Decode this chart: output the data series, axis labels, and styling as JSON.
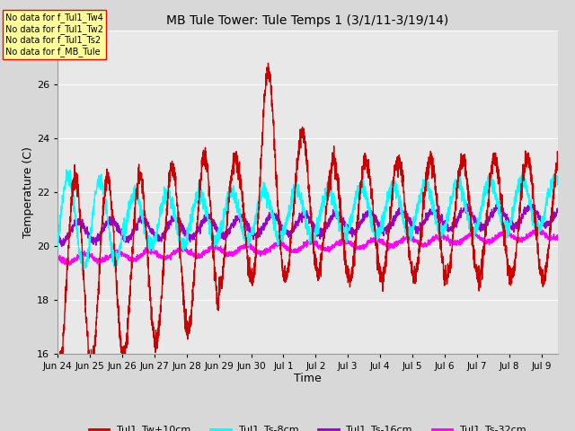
{
  "title": "MB Tule Tower: Tule Temps 1 (3/1/11-3/19/14)",
  "xlabel": "Time",
  "ylabel": "Temperature (C)",
  "ylim": [
    16,
    28
  ],
  "yticks": [
    16,
    18,
    20,
    22,
    24,
    26,
    28
  ],
  "bg_color": "#d8d8d8",
  "plot_bg_color": "#e8e8e8",
  "grid_color": "white",
  "series": {
    "Tul1_Tw+10cm": {
      "color": "#cc0000",
      "lw": 1.0
    },
    "Tul1_Ts-8cm": {
      "color": "cyan",
      "lw": 1.0
    },
    "Tul1_Ts-16cm": {
      "color": "#9900cc",
      "lw": 1.0
    },
    "Tul1_Ts-32cm": {
      "color": "#ff00ff",
      "lw": 1.0
    }
  },
  "no_data_texts": [
    "No data for f_Tul1_Tw4",
    "No data for f_Tul1_Tw2",
    "No data for f_Tul1_Ts2",
    "No data for f_MB_Tule"
  ],
  "no_data_box_color": "#ffff99",
  "no_data_box_edge": "red",
  "xtick_labels": [
    "Jun 24",
    "Jun 25",
    "Jun 26",
    "Jun 27",
    "Jun 28",
    "Jun 29",
    "Jun 30",
    "Jul 1",
    "Jul 2",
    "Jul 3",
    "Jul 4",
    "Jul 5",
    "Jul 6",
    "Jul 7",
    "Jul 8",
    "Jul 9"
  ],
  "figsize": [
    6.4,
    4.8
  ],
  "dpi": 100
}
